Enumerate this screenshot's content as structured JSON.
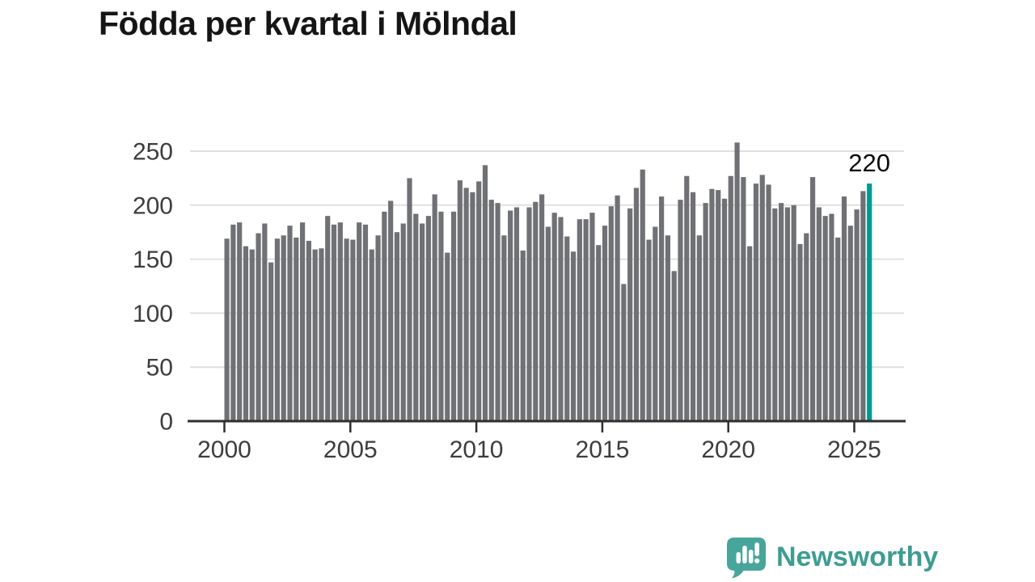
{
  "page": {
    "title": "Födda per kvartal i Mölndal",
    "brand": {
      "name": "Newsworthy",
      "icon": "newsworthy-speech-bubble-bar-chart-icon",
      "text_color": "#3e9c92",
      "icon_color": "#48a59b"
    }
  },
  "chart_data": {
    "type": "bar",
    "title": "Födda per kvartal i Mölndal",
    "x_unit": "quarter",
    "start_period": "2000-Q1",
    "end_period": "2025-Q3",
    "values": [
      169,
      182,
      184,
      162,
      159,
      174,
      183,
      147,
      169,
      172,
      181,
      170,
      184,
      167,
      159,
      160,
      190,
      182,
      184,
      169,
      168,
      184,
      182,
      159,
      172,
      194,
      204,
      175,
      183,
      225,
      192,
      183,
      190,
      210,
      194,
      156,
      194,
      223,
      216,
      212,
      222,
      237,
      205,
      202,
      172,
      195,
      198,
      158,
      198,
      203,
      210,
      180,
      193,
      189,
      171,
      157,
      187,
      187,
      193,
      163,
      181,
      199,
      209,
      127,
      197,
      216,
      233,
      168,
      180,
      208,
      172,
      139,
      205,
      227,
      212,
      172,
      202,
      215,
      214,
      206,
      227,
      258,
      226,
      162,
      220,
      228,
      219,
      197,
      202,
      198,
      200,
      164,
      174,
      226,
      198,
      190,
      192,
      170,
      208,
      181,
      196,
      213,
      220
    ],
    "last_value_label": "220",
    "highlight_last": true,
    "bar_color": "#707175",
    "highlight_color": "#009a8f",
    "axis_color": "#2f2f2f",
    "grid_color": "#e0e0e0",
    "tick_label_color": "#3d3d3d",
    "annotation_color": "#0b0b0b",
    "xticks": [
      2000,
      2005,
      2010,
      2015,
      2020,
      2025
    ],
    "yticks": [
      0,
      50,
      100,
      150,
      200,
      250
    ],
    "ylim": [
      0,
      265
    ],
    "grid": "horizontal",
    "legend": "none"
  }
}
